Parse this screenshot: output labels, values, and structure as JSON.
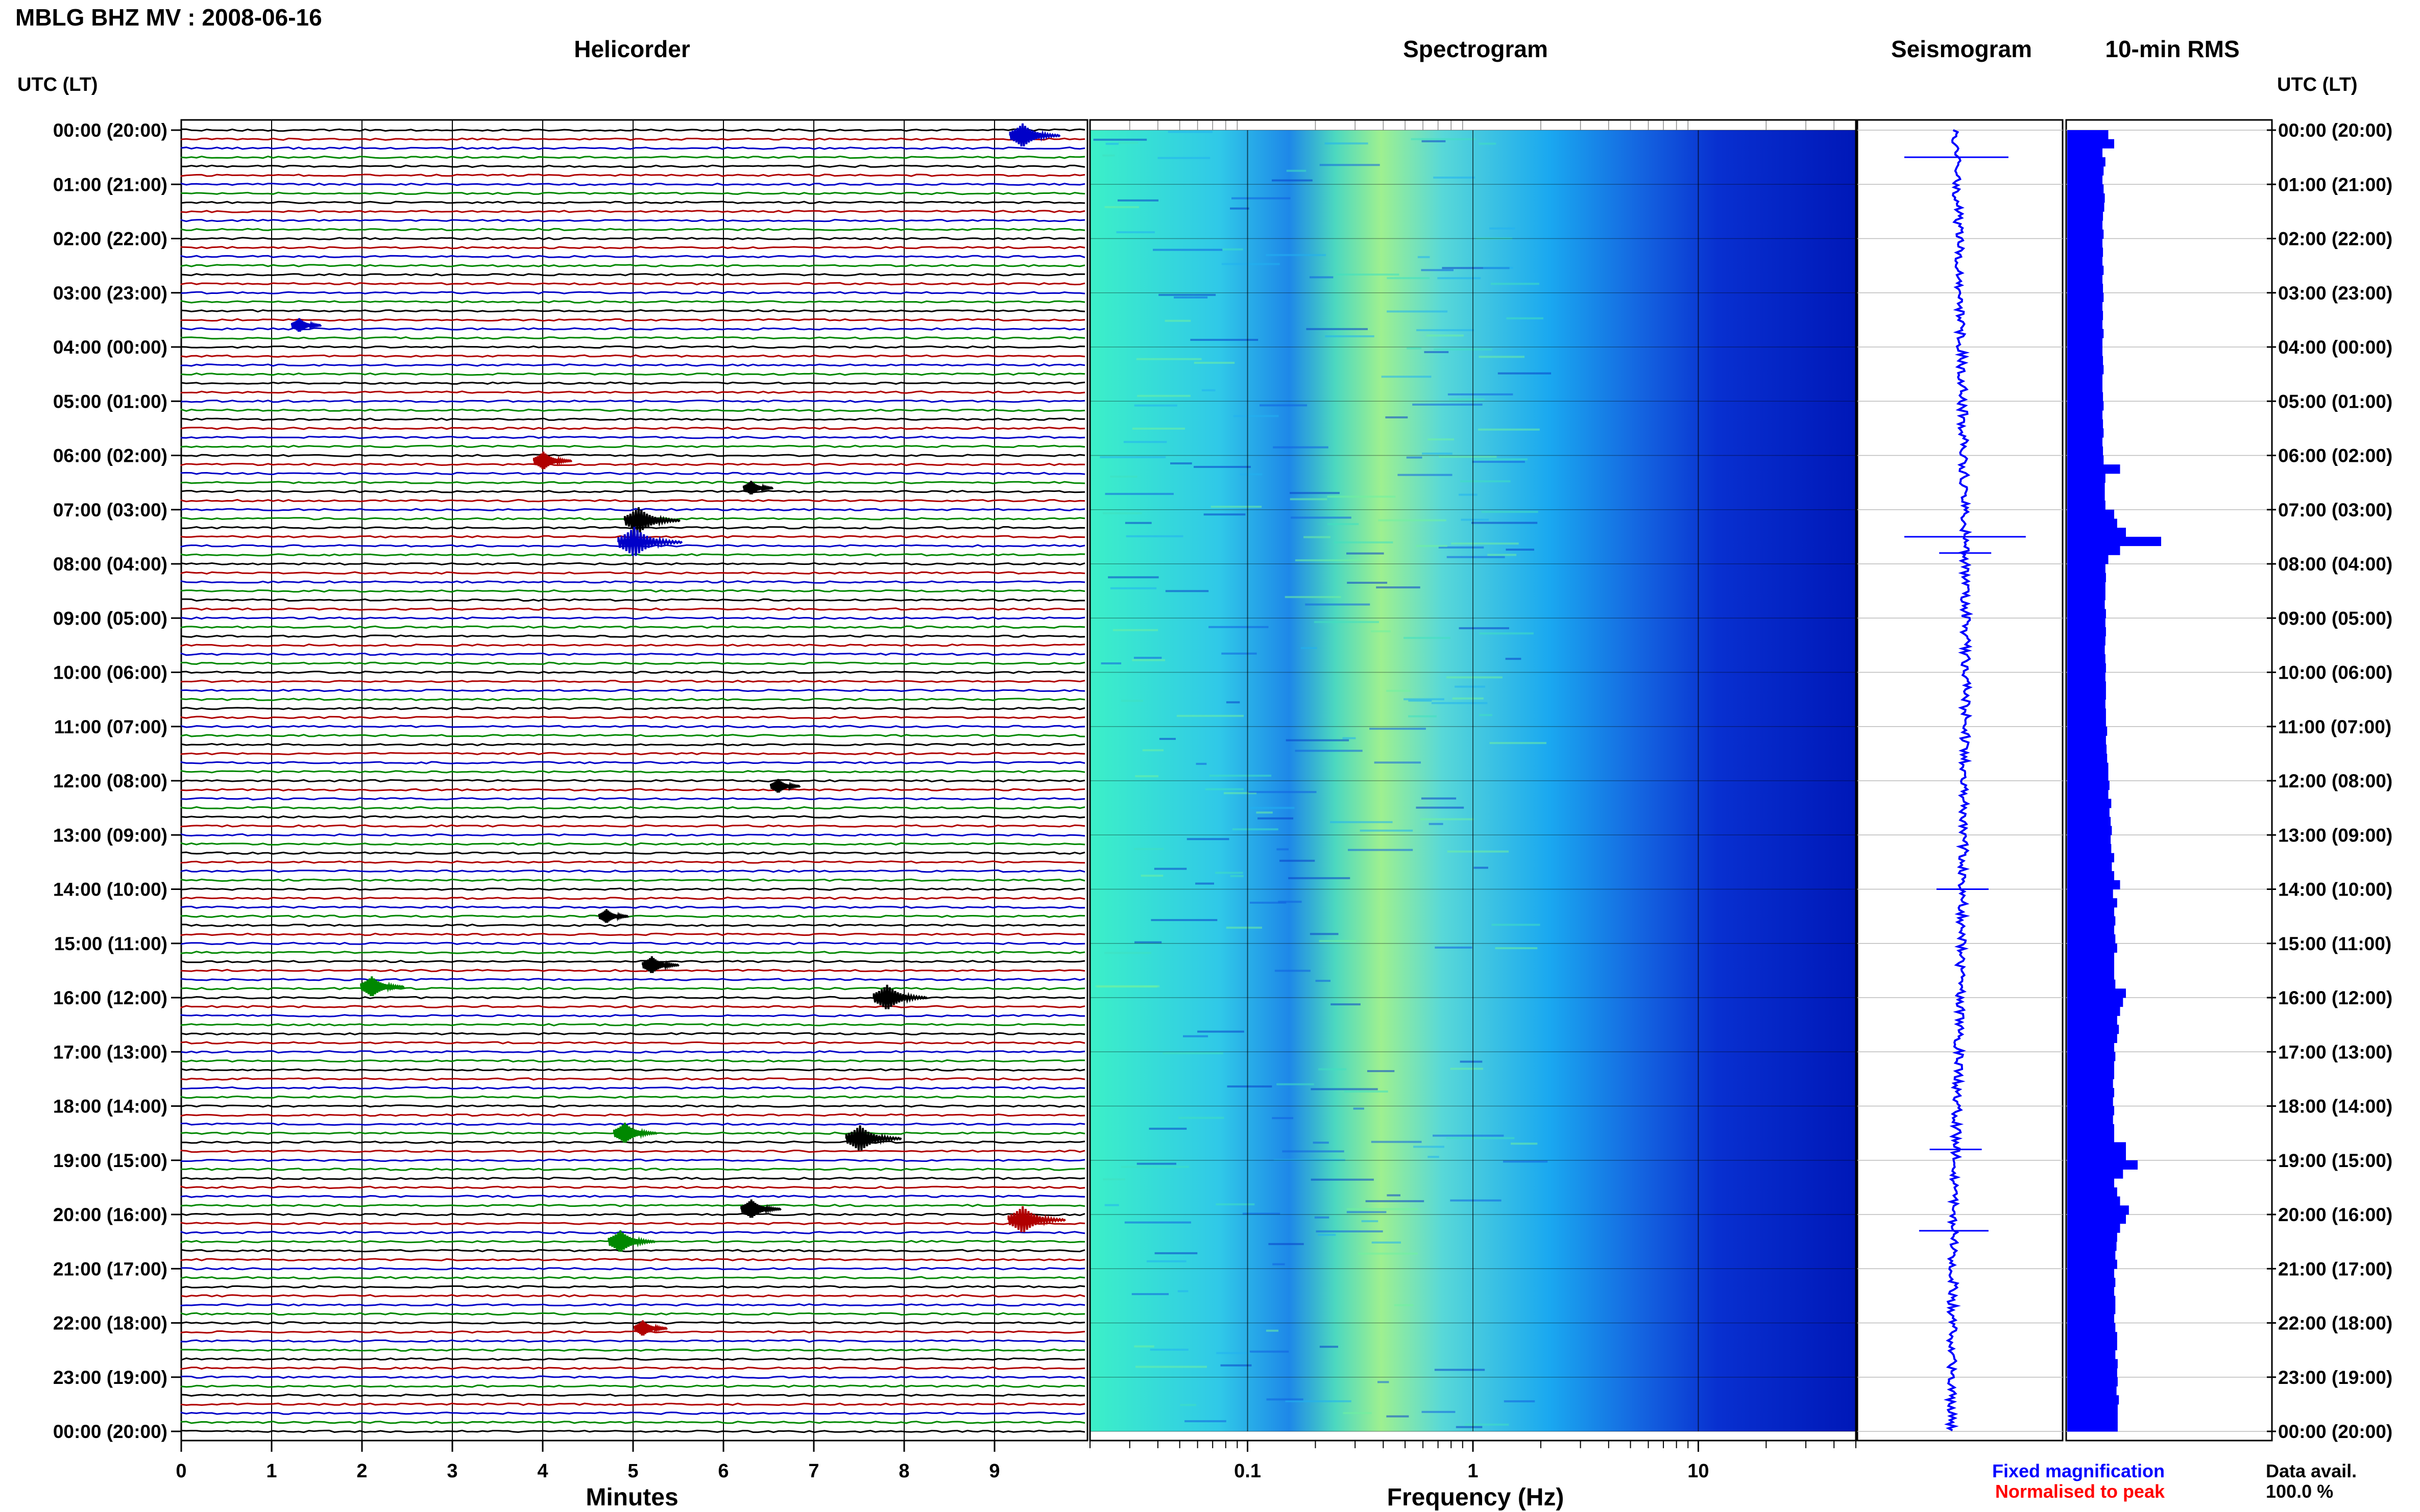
{
  "header": {
    "station_title": "MBLG BHZ MV : 2008-06-16",
    "utc_lt_label": "UTC (LT)"
  },
  "panels": {
    "helicorder": "Helicorder",
    "spectrogram": "Spectrogram",
    "seismogram": "Seismogram",
    "rms": "10-min RMS"
  },
  "footer": {
    "fixed_magnification": "Fixed magnification",
    "normalised_to_peak": "Normalised to peak",
    "data_avail_label": "Data avail.",
    "data_avail_value": "100.0 %"
  },
  "colors": {
    "trace_cycle": [
      "#000000",
      "#b00000",
      "#0000c8",
      "#008800"
    ],
    "fixed_magnification": "#0000ff",
    "normalised_to_peak": "#ff0000",
    "rms_bar": "#0000ff",
    "seismogram_trace": "#0000ff"
  },
  "chart_data": [
    {
      "type": "line",
      "name": "helicorder",
      "title": "Helicorder",
      "xlabel": "Minutes",
      "xlim": [
        0,
        10
      ],
      "xticks": [
        0,
        1,
        2,
        3,
        4,
        5,
        6,
        7,
        8,
        9
      ],
      "ylabel": "UTC (LT)",
      "row_labels": [
        "00:00 (20:00)",
        "01:00 (21:00)",
        "02:00 (22:00)",
        "03:00 (23:00)",
        "04:00 (00:00)",
        "05:00 (01:00)",
        "06:00 (02:00)",
        "07:00 (03:00)",
        "08:00 (04:00)",
        "09:00 (05:00)",
        "10:00 (06:00)",
        "11:00 (07:00)",
        "12:00 (08:00)",
        "13:00 (09:00)",
        "14:00 (10:00)",
        "15:00 (11:00)",
        "16:00 (12:00)",
        "17:00 (13:00)",
        "18:00 (14:00)",
        "19:00 (15:00)",
        "20:00 (16:00)",
        "21:00 (17:00)",
        "22:00 (18:00)",
        "23:00 (19:00)",
        "00:00 (20:00)"
      ],
      "traces_per_hour": 6,
      "events": [
        {
          "hour": 0.1,
          "minute": 9.3,
          "size": 2.2,
          "color": "#0000c8"
        },
        {
          "hour": 3.6,
          "minute": 1.3,
          "size": 1.0,
          "color": "#0000c8"
        },
        {
          "hour": 6.1,
          "minute": 4.0,
          "size": 1.5,
          "color": "#b00000"
        },
        {
          "hour": 6.6,
          "minute": 6.3,
          "size": 1.0,
          "color": "#000000"
        },
        {
          "hour": 7.2,
          "minute": 5.05,
          "size": 2.5,
          "color": "#000000"
        },
        {
          "hour": 7.6,
          "minute": 5.0,
          "size": 3.0,
          "color": "#0000c8"
        },
        {
          "hour": 12.1,
          "minute": 6.6,
          "size": 1.0,
          "color": "#000000"
        },
        {
          "hour": 14.5,
          "minute": 4.7,
          "size": 1.0,
          "color": "#000000"
        },
        {
          "hour": 15.4,
          "minute": 5.2,
          "size": 1.4,
          "color": "#000000"
        },
        {
          "hour": 15.8,
          "minute": 2.1,
          "size": 1.8,
          "color": "#008800"
        },
        {
          "hour": 16.0,
          "minute": 7.8,
          "size": 2.4,
          "color": "#000000"
        },
        {
          "hour": 18.5,
          "minute": 4.9,
          "size": 1.8,
          "color": "#008800"
        },
        {
          "hour": 18.6,
          "minute": 7.5,
          "size": 2.5,
          "color": "#000000"
        },
        {
          "hour": 19.9,
          "minute": 6.3,
          "size": 1.6,
          "color": "#000000"
        },
        {
          "hour": 20.1,
          "minute": 9.3,
          "size": 2.6,
          "color": "#b00000"
        },
        {
          "hour": 20.5,
          "minute": 4.85,
          "size": 2.0,
          "color": "#008800"
        },
        {
          "hour": 22.1,
          "minute": 5.1,
          "size": 1.2,
          "color": "#b00000"
        }
      ]
    },
    {
      "type": "heatmap",
      "name": "spectrogram",
      "title": "Spectrogram",
      "xlabel": "Frequency (Hz)",
      "xscale": "log",
      "xlim": [
        0.02,
        50
      ],
      "xtick_labels": [
        "0.1",
        "1",
        "10"
      ],
      "xtick_values": [
        0.1,
        1,
        10
      ],
      "ylim_hours": [
        0,
        24
      ]
    },
    {
      "type": "line",
      "name": "seismogram",
      "title": "Seismogram",
      "ylim_hours": [
        0,
        24
      ],
      "spikes": [
        {
          "hour": 0.5,
          "amplitude": 0.6
        },
        {
          "hour": 7.5,
          "amplitude": 0.7
        },
        {
          "hour": 7.8,
          "amplitude": 0.3
        },
        {
          "hour": 14.0,
          "amplitude": 0.3
        },
        {
          "hour": 18.8,
          "amplitude": 0.3
        },
        {
          "hour": 20.3,
          "amplitude": 0.4
        }
      ]
    },
    {
      "type": "bar",
      "name": "rms",
      "title": "10-min RMS",
      "ylim_hours": [
        0,
        24
      ],
      "values": [
        0.7,
        0.8,
        0.6,
        0.65,
        0.62,
        0.6,
        0.62,
        0.64,
        0.63,
        0.61,
        0.6,
        0.62,
        0.6,
        0.61,
        0.6,
        0.62,
        0.6,
        0.61,
        0.62,
        0.6,
        0.61,
        0.6,
        0.62,
        0.6,
        0.6,
        0.61,
        0.62,
        0.6,
        0.6,
        0.61,
        0.62,
        0.6,
        0.61,
        0.62,
        0.6,
        0.61,
        0.62,
        0.9,
        0.65,
        0.64,
        0.64,
        0.65,
        0.8,
        0.85,
        1.0,
        1.6,
        0.9,
        0.7,
        0.65,
        0.66,
        0.65,
        0.65,
        0.64,
        0.66,
        0.65,
        0.66,
        0.65,
        0.64,
        0.65,
        0.66,
        0.65,
        0.66,
        0.66,
        0.65,
        0.66,
        0.66,
        0.68,
        0.66,
        0.67,
        0.68,
        0.7,
        0.7,
        0.72,
        0.7,
        0.75,
        0.72,
        0.74,
        0.76,
        0.74,
        0.75,
        0.8,
        0.76,
        0.8,
        0.9,
        0.78,
        0.85,
        0.8,
        0.82,
        0.8,
        0.82,
        0.85,
        0.8,
        0.8,
        0.8,
        0.82,
        1.0,
        0.95,
        0.9,
        0.85,
        0.88,
        0.85,
        0.8,
        0.82,
        0.8,
        0.8,
        0.78,
        0.8,
        0.78,
        0.8,
        0.78,
        0.8,
        0.8,
        1.0,
        1.0,
        1.2,
        0.95,
        0.8,
        0.85,
        0.9,
        1.05,
        1.0,
        0.9,
        0.85,
        0.84,
        0.82,
        0.85,
        0.8,
        0.82,
        0.8,
        0.82,
        0.82,
        0.8,
        0.82,
        0.85,
        0.85,
        0.82,
        0.86,
        0.85,
        0.86,
        0.84,
        0.88,
        0.86,
        0.86,
        0.86
      ]
    }
  ]
}
